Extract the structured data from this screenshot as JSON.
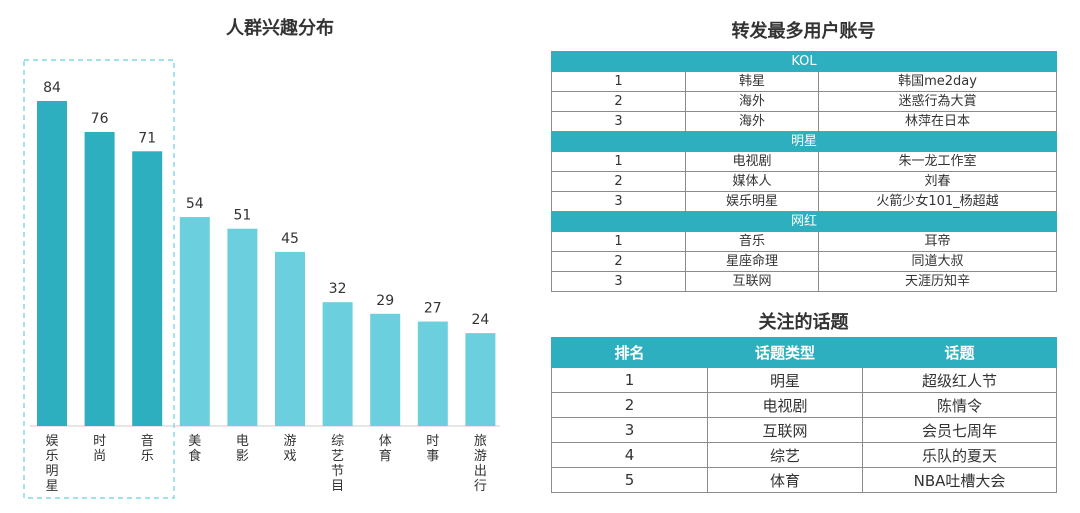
{
  "chart_data": {
    "type": "bar",
    "title": "人群兴趣分布",
    "categories": [
      "娱乐明星",
      "时尚",
      "音乐",
      "美食",
      "电影",
      "游戏",
      "综艺节目",
      "体育",
      "时事",
      "旅游出行"
    ],
    "values": [
      84,
      76,
      71,
      54,
      51,
      45,
      32,
      29,
      27,
      24
    ],
    "highlighted": [
      "娱乐明星",
      "时尚",
      "音乐"
    ],
    "ylim": [
      0,
      100
    ],
    "colors": {
      "highlight": "#2eafbf",
      "normal": "#6ccfde",
      "box": "#6ccfde"
    }
  },
  "accounts": {
    "title": "转发最多用户账号",
    "groups": [
      {
        "name": "KOL",
        "rows": [
          [
            "1",
            "韩星",
            "韩国me2day"
          ],
          [
            "2",
            "海外",
            "迷惑行為大賞"
          ],
          [
            "3",
            "海外",
            "林萍在日本"
          ]
        ]
      },
      {
        "name": "明星",
        "rows": [
          [
            "1",
            "电视剧",
            "朱一龙工作室"
          ],
          [
            "2",
            "媒体人",
            "刘春"
          ],
          [
            "3",
            "娱乐明星",
            "火箭少女101_杨超越"
          ]
        ]
      },
      {
        "name": "网红",
        "rows": [
          [
            "1",
            "音乐",
            "耳帝"
          ],
          [
            "2",
            "星座命理",
            "同道大叔"
          ],
          [
            "3",
            "互联网",
            "天涯历知辛"
          ]
        ]
      }
    ]
  },
  "topics": {
    "title": "关注的话题",
    "headers": [
      "排名",
      "话题类型",
      "话题"
    ],
    "rows": [
      [
        "1",
        "明星",
        "超级红人节"
      ],
      [
        "2",
        "电视剧",
        "陈情令"
      ],
      [
        "3",
        "互联网",
        "会员七周年"
      ],
      [
        "4",
        "综艺",
        "乐队的夏天"
      ],
      [
        "5",
        "体育",
        "NBA吐槽大会"
      ]
    ]
  }
}
